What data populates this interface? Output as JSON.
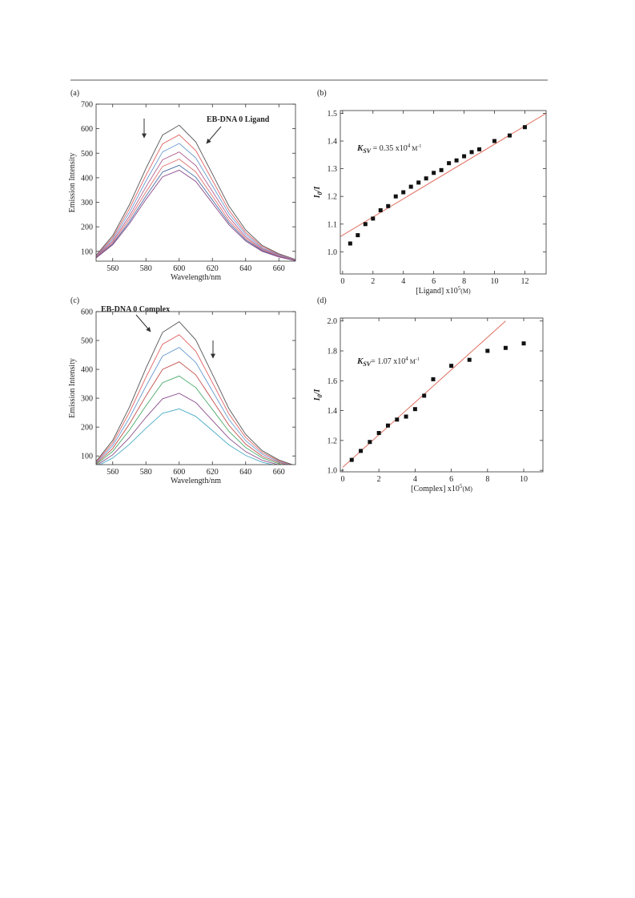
{
  "chart_data": [
    {
      "type": "line",
      "panel_label": "(a)",
      "annotation": "EB-DNA  0 Ligand",
      "xlabel": "Wavelength/nm",
      "ylabel": "Emission Intensity",
      "xlim": [
        550,
        670
      ],
      "ylim": [
        60,
        700
      ],
      "xticks": [
        560,
        580,
        600,
        620,
        640,
        660
      ],
      "yticks": [
        100,
        200,
        300,
        400,
        500,
        600,
        700
      ],
      "x": [
        550,
        560,
        570,
        580,
        590,
        600,
        610,
        620,
        630,
        640,
        650,
        660,
        670
      ],
      "series": [
        {
          "color": "#555555",
          "values": [
            84,
            164,
            289,
            438,
            574,
            614,
            546,
            415,
            284,
            187,
            124,
            90,
            67
          ]
        },
        {
          "color": "#e06262",
          "values": [
            82,
            156,
            273,
            410,
            538,
            575,
            511,
            389,
            267,
            177,
            119,
            87,
            66
          ]
        },
        {
          "color": "#6a9bd1",
          "values": [
            80,
            149,
            258,
            387,
            505,
            540,
            481,
            367,
            253,
            169,
            114,
            85,
            65
          ]
        },
        {
          "color": "#b06090",
          "values": [
            78,
            142,
            243,
            363,
            473,
            505,
            450,
            344,
            239,
            160,
            110,
            82,
            64
          ]
        },
        {
          "color": "#e07070",
          "values": [
            76,
            136,
            231,
            342,
            446,
            476,
            424,
            325,
            226,
            153,
            106,
            80,
            63
          ]
        },
        {
          "color": "#4a6fa5",
          "values": [
            74,
            131,
            220,
            325,
            423,
            451,
            402,
            309,
            216,
            147,
            103,
            78,
            62
          ]
        },
        {
          "color": "#8a4a8a",
          "values": [
            73,
            127,
            212,
            312,
            404,
            431,
            385,
            296,
            208,
            142,
            100,
            77,
            62
          ]
        }
      ]
    },
    {
      "type": "scatter",
      "panel_label": "(b)",
      "annotation": {
        "symbol": "K",
        "sub": "SV",
        "text": " = 0.35 x10",
        "sup": "4",
        "unit": " M",
        "unit_sup": "-1"
      },
      "xlabel": {
        "text": "[Ligand] x10",
        "sup": "5",
        "unit": "(M)"
      },
      "ylabel": {
        "main": "I",
        "sub": "0",
        "rest": "/I"
      },
      "xlim": [
        -0.15,
        13.4
      ],
      "ylim": [
        0.92,
        1.51
      ],
      "xticks": [
        0,
        2,
        4,
        6,
        8,
        10,
        12
      ],
      "yticks": [
        {
          "value": 1,
          "label": "1.0"
        },
        1.1,
        1.2,
        1.3,
        1.4,
        1.5
      ],
      "x": [
        0.5,
        1,
        1.5,
        2,
        2.5,
        3,
        3.5,
        4,
        4.5,
        5,
        5.5,
        6,
        6.5,
        7,
        7.5,
        8,
        8.5,
        9,
        10,
        11,
        12
      ],
      "values": [
        1.03,
        1.06,
        1.1,
        1.12,
        1.15,
        1.165,
        1.2,
        1.215,
        1.235,
        1.25,
        1.265,
        1.285,
        1.295,
        1.32,
        1.33,
        1.345,
        1.36,
        1.37,
        1.4,
        1.42,
        1.45
      ],
      "color": "#111111",
      "fit": {
        "color": "#e07060",
        "x": [
          -0.15,
          13.4
        ],
        "values": [
          1.055,
          1.5
        ]
      }
    },
    {
      "type": "line",
      "panel_label": "(c)",
      "annotation": "EB-DNA  0 Complex",
      "xlabel": "Wavelength/nm",
      "ylabel": "Emission Intensity",
      "xlim": [
        550,
        670
      ],
      "ylim": [
        70,
        600
      ],
      "xticks": [
        560,
        580,
        600,
        620,
        640,
        660
      ],
      "yticks": [
        100,
        200,
        300,
        400,
        500,
        600
      ],
      "x": [
        550,
        560,
        570,
        580,
        590,
        600,
        610,
        620,
        630,
        640,
        650,
        660,
        670
      ],
      "series": [
        {
          "color": "#555555",
          "values": [
            81,
            154,
            268,
            404,
            528,
            565,
            502,
            383,
            263,
            175,
            118,
            86,
            66
          ]
        },
        {
          "color": "#e06262",
          "values": [
            79,
            145,
            250,
            373,
            487,
            520,
            463,
            354,
            245,
            164,
            112,
            83,
            64
          ]
        },
        {
          "color": "#6a9bd1",
          "values": [
            76,
            136,
            231,
            342,
            446,
            476,
            424,
            325,
            226,
            153,
            106,
            80,
            63
          ]
        },
        {
          "color": "#c0504d",
          "values": [
            73,
            126,
            210,
            308,
            400,
            426,
            381,
            293,
            206,
            141,
            99,
            77,
            61
          ]
        },
        {
          "color": "#4aa86a",
          "values": [
            70,
            116,
            189,
            274,
            354,
            377,
            337,
            261,
            185,
            129,
            93,
            73,
            60
          ]
        },
        {
          "color": "#8a4a8a",
          "values": [
            66,
            104,
            163,
            234,
            298,
            317,
            285,
            223,
            161,
            115,
            85,
            69,
            58
          ]
        },
        {
          "color": "#4bacc6",
          "values": [
            63,
            93,
            140,
            196,
            248,
            263,
            237,
            188,
            138,
            102,
            78,
            65,
            56
          ]
        }
      ]
    },
    {
      "type": "scatter",
      "panel_label": "(d)",
      "annotation": {
        "symbol": "K",
        "sub": "SV",
        "text": "= 1.07 x10",
        "sup": "4",
        "unit": " M",
        "unit_sup": "-1"
      },
      "xlabel": {
        "text": "[Complex] x10",
        "sup": "5",
        "unit": "(M)"
      },
      "ylabel": {
        "main": "I",
        "sub": "0",
        "rest": "/I"
      },
      "xlim": [
        -0.13,
        11.06
      ],
      "ylim": [
        0.99,
        2.02
      ],
      "xticks": [
        0,
        2,
        4,
        6,
        8,
        10
      ],
      "yticks": [
        {
          "value": 1,
          "label": "1.0"
        },
        1.2,
        1.4,
        1.6,
        1.8,
        {
          "value": 2,
          "label": "2.0"
        }
      ],
      "x": [
        0.5,
        1,
        1.5,
        2,
        2.5,
        3,
        3.5,
        4,
        4.5,
        5,
        6,
        7,
        8,
        9,
        10
      ],
      "values": [
        1.07,
        1.13,
        1.19,
        1.25,
        1.3,
        1.34,
        1.36,
        1.41,
        1.5,
        1.61,
        1.7,
        1.74,
        1.8,
        1.82,
        1.85
      ],
      "color": "#111111",
      "fit": {
        "color": "#e07060",
        "x": [
          0,
          9
        ],
        "values": [
          1.02,
          2.0
        ]
      }
    }
  ]
}
